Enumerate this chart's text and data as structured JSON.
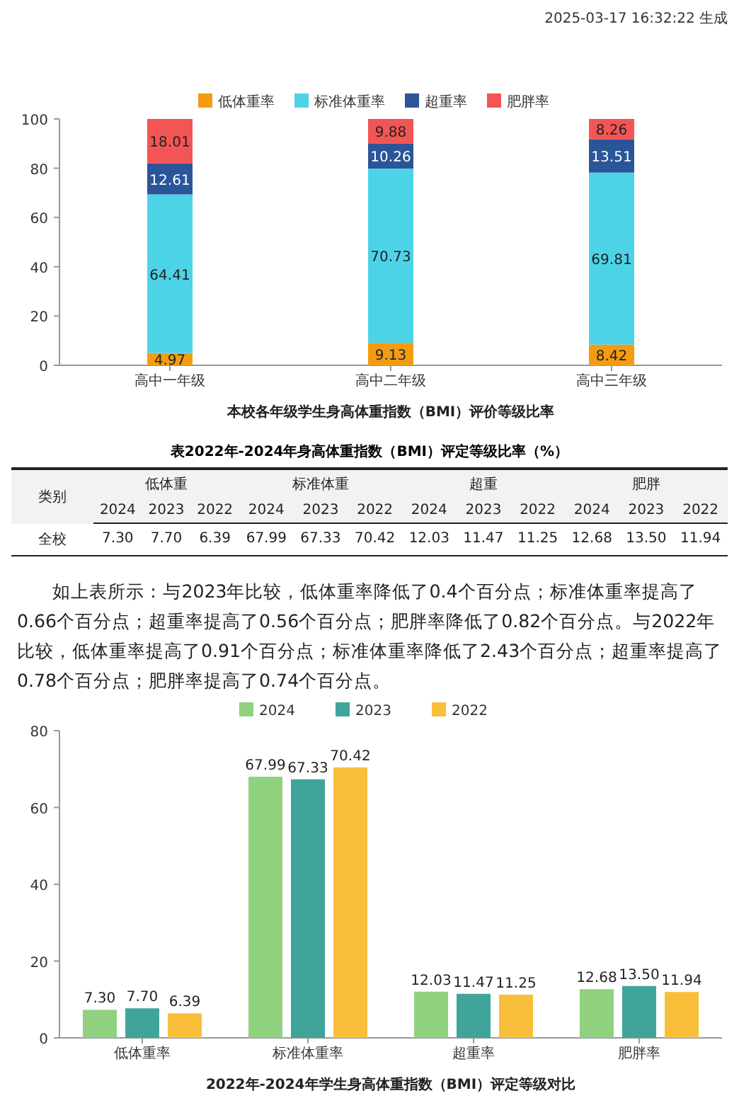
{
  "chart_data": [
    {
      "type": "bar",
      "stacked": true,
      "title": "本校各年级学生身高体重指数（BMI）评价等级比率",
      "categories": [
        "高中一年级",
        "高中二年级",
        "高中三年级"
      ],
      "series": [
        {
          "name": "低体重率",
          "color": "#f39c12",
          "values": [
            4.97,
            9.13,
            8.42
          ]
        },
        {
          "name": "标准体重率",
          "color": "#4dd3e8",
          "values": [
            64.41,
            70.73,
            69.81
          ]
        },
        {
          "name": "超重率",
          "color": "#2a5599",
          "values": [
            12.61,
            10.26,
            13.51
          ]
        },
        {
          "name": "肥胖率",
          "color": "#f25555",
          "values": [
            18.01,
            9.88,
            8.26
          ]
        }
      ],
      "ylim": [
        0,
        100
      ],
      "yticks": [
        0,
        20,
        40,
        60,
        80,
        100
      ],
      "data_labels": true,
      "legend": "top",
      "annotations": [
        "2025-03-17 16:32:22 生成"
      ]
    },
    {
      "type": "other",
      "title": "表2022年-2024年身高体重指数（BMI）评定等级比率（%）",
      "categories": [
        "2024",
        "2023",
        "2022",
        "2024",
        "2023",
        "2022",
        "2024",
        "2023",
        "2022",
        "2024",
        "2023",
        "2022"
      ],
      "y_categories": [
        "全校"
      ],
      "cell_labels": [
        [
          "7.30",
          "7.70",
          "6.39",
          "67.99",
          "67.33",
          "70.42",
          "12.03",
          "11.47",
          "11.25",
          "12.68",
          "13.50",
          "11.94"
        ]
      ],
      "annotations": [
        "类别",
        "低体重",
        "标准体重",
        "超重",
        "肥胖",
        "如上表所示：与2023年比较，低体重率降低了0.4个百分点；标准体重率提高了0.66个百分点；超重率提高了0.56个百分点；肥胖率降低了0.82个百分点。与2022年比较，低体重率提高了0.91个百分点；标准体重率降低了2.43个百分点；超重率提高了0.78个百分点；肥胖率提高了0.74个百分点。"
      ]
    },
    {
      "type": "bar",
      "title": "2022年-2024年学生身高体重指数（BMI）评定等级对比",
      "categories": [
        "低体重率",
        "标准体重率",
        "超重率",
        "肥胖率"
      ],
      "series": [
        {
          "name": "2024",
          "color": "#8fd17f",
          "values": [
            7.3,
            67.99,
            12.03,
            12.68
          ],
          "value_labels": [
            "7.30",
            "67.99",
            "12.03",
            "12.68"
          ]
        },
        {
          "name": "2023",
          "color": "#3fa59a",
          "values": [
            7.7,
            67.33,
            11.47,
            13.5
          ],
          "value_labels": [
            "7.70",
            "67.33",
            "11.47",
            "13.50"
          ]
        },
        {
          "name": "2022",
          "color": "#f9bf3b",
          "values": [
            6.39,
            70.42,
            11.25,
            11.94
          ],
          "value_labels": [
            "6.39",
            "70.42",
            "11.25",
            "11.94"
          ]
        }
      ],
      "ylim": [
        0,
        80
      ],
      "yticks": [
        0,
        20,
        40,
        60,
        80
      ],
      "legend": "top"
    }
  ]
}
